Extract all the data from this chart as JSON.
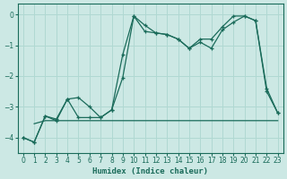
{
  "xlabel": "Humidex (Indice chaleur)",
  "ylabel": "",
  "xlim": [
    -0.5,
    23.5
  ],
  "ylim": [
    -4.5,
    0.35
  ],
  "yticks": [
    0,
    -1,
    -2,
    -3,
    -4
  ],
  "xticks": [
    0,
    1,
    2,
    3,
    4,
    5,
    6,
    7,
    8,
    9,
    10,
    11,
    12,
    13,
    14,
    15,
    16,
    17,
    18,
    19,
    20,
    21,
    22,
    23
  ],
  "bg_color": "#cce8e4",
  "grid_color": "#b0d8d2",
  "line_color": "#1a6b5a",
  "line1_x": [
    0,
    1,
    2,
    3,
    4,
    5,
    6,
    7,
    8,
    9,
    10,
    11,
    12,
    13,
    14,
    15,
    16,
    17,
    18,
    19,
    20,
    21,
    22,
    23
  ],
  "line1_y": [
    -4.0,
    -4.15,
    -3.3,
    -3.4,
    -2.75,
    -2.7,
    -3.0,
    -3.35,
    -3.1,
    -1.3,
    -0.05,
    -0.35,
    -0.6,
    -0.65,
    -0.8,
    -1.1,
    -0.8,
    -0.8,
    -0.4,
    -0.05,
    -0.05,
    -0.2,
    -2.4,
    -3.2
  ],
  "line2_x": [
    0,
    1,
    2,
    3,
    4,
    5,
    6,
    7,
    8,
    9,
    10,
    11,
    12,
    13,
    14,
    15,
    16,
    17,
    18,
    19,
    20,
    21,
    22,
    23
  ],
  "line2_y": [
    -4.0,
    -4.15,
    -3.3,
    -3.45,
    -2.75,
    -3.35,
    -3.35,
    -3.35,
    -3.1,
    -2.05,
    -0.05,
    -0.55,
    -0.6,
    -0.65,
    -0.8,
    -1.1,
    -0.9,
    -1.1,
    -0.5,
    -0.25,
    -0.05,
    -0.2,
    -2.5,
    -3.2
  ],
  "line3_x": [
    1,
    2,
    3,
    4,
    5,
    6,
    7,
    8,
    9,
    10,
    11,
    12,
    13,
    14,
    15,
    16,
    17,
    18,
    19,
    20,
    21,
    22,
    23
  ],
  "line3_y": [
    -3.55,
    -3.45,
    -3.45,
    -3.45,
    -3.45,
    -3.45,
    -3.45,
    -3.45,
    -3.45,
    -3.45,
    -3.45,
    -3.45,
    -3.45,
    -3.45,
    -3.45,
    -3.45,
    -3.45,
    -3.45,
    -3.45,
    -3.45,
    -3.45,
    -3.45,
    -3.45
  ]
}
